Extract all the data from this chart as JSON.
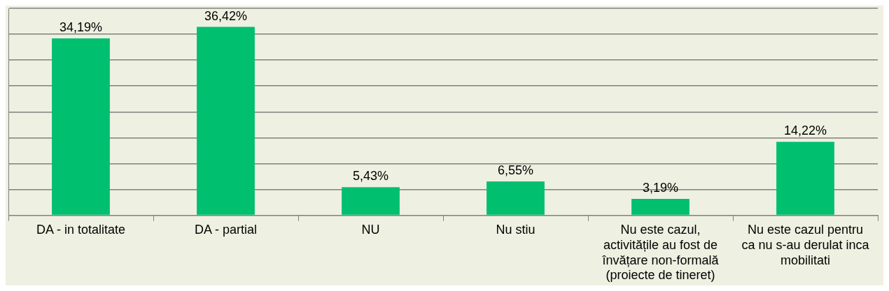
{
  "chart_data": {
    "type": "bar",
    "categories": [
      "DA - in totalitate",
      "DA - partial",
      "NU",
      "Nu stiu",
      "Nu este cazul, activitățile au fost de învățare non-formală (proiecte de tineret)",
      "Nu este cazul pentru ca nu s-au derulat inca mobilitati"
    ],
    "values": [
      34.19,
      36.42,
      5.43,
      6.55,
      3.19,
      14.22
    ],
    "value_labels": [
      "34,19%",
      "36,42%",
      "5,43%",
      "6,55%",
      "3,19%",
      "14,22%"
    ],
    "color": "#00bf6f",
    "ylim": [
      0,
      40
    ],
    "yticks": [
      {
        "value": 0,
        "label": null
      },
      {
        "value": 5,
        "label": null
      },
      {
        "value": 10,
        "label": null
      },
      {
        "value": 15,
        "label": null
      },
      {
        "value": 20,
        "label": null
      },
      {
        "value": 25,
        "label": null
      },
      {
        "value": 30,
        "label": null
      },
      {
        "value": 35,
        "label": null
      },
      {
        "value": 40,
        "label": null
      }
    ],
    "grid": "y",
    "tick_labels": "x"
  }
}
